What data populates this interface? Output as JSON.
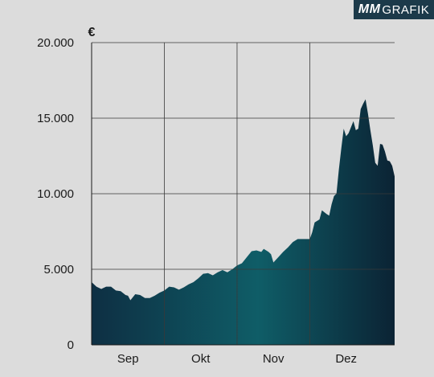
{
  "logo": {
    "brand": "MM",
    "suffix": "GRAFIK"
  },
  "chart_data": {
    "type": "area",
    "title": "",
    "xlabel": "",
    "ylabel": "€",
    "ylim": [
      0,
      20000
    ],
    "yticks": [
      0,
      5000,
      10000,
      15000,
      20000
    ],
    "ytick_labels": [
      "0",
      "5.000",
      "10.000",
      "15.000",
      "20.000"
    ],
    "xlim": [
      0,
      120
    ],
    "xticks": [
      15,
      45,
      75,
      105
    ],
    "xtick_labels": [
      "Sep",
      "Okt",
      "Nov",
      "Dez"
    ],
    "month_boundaries": [
      0,
      30,
      60,
      90,
      120
    ],
    "grid": true,
    "series": [
      {
        "values": [
          [
            0,
            4150
          ],
          [
            2,
            3850
          ],
          [
            4,
            3700
          ],
          [
            6,
            3850
          ],
          [
            8,
            3850
          ],
          [
            10,
            3600
          ],
          [
            12,
            3550
          ],
          [
            14,
            3300
          ],
          [
            15,
            3250
          ],
          [
            16,
            2950
          ],
          [
            18,
            3350
          ],
          [
            20,
            3300
          ],
          [
            22,
            3100
          ],
          [
            24,
            3100
          ],
          [
            26,
            3250
          ],
          [
            28,
            3450
          ],
          [
            30,
            3600
          ],
          [
            32,
            3850
          ],
          [
            34,
            3800
          ],
          [
            36,
            3650
          ],
          [
            38,
            3800
          ],
          [
            40,
            4000
          ],
          [
            42,
            4150
          ],
          [
            44,
            4400
          ],
          [
            46,
            4700
          ],
          [
            48,
            4750
          ],
          [
            50,
            4600
          ],
          [
            52,
            4800
          ],
          [
            54,
            4950
          ],
          [
            56,
            4800
          ],
          [
            58,
            5000
          ],
          [
            60,
            5250
          ],
          [
            62,
            5400
          ],
          [
            64,
            5800
          ],
          [
            66,
            6200
          ],
          [
            68,
            6250
          ],
          [
            70,
            6150
          ],
          [
            71,
            6350
          ],
          [
            73,
            6150
          ],
          [
            74,
            6000
          ],
          [
            75,
            5450
          ],
          [
            77,
            5800
          ],
          [
            79,
            6150
          ],
          [
            81,
            6450
          ],
          [
            83,
            6800
          ],
          [
            85,
            7000
          ],
          [
            87,
            7000
          ],
          [
            89,
            7000
          ],
          [
            90,
            7000
          ],
          [
            91,
            7450
          ],
          [
            92,
            8100
          ],
          [
            94,
            8300
          ],
          [
            95,
            8900
          ],
          [
            97,
            8650
          ],
          [
            98,
            8550
          ],
          [
            99,
            9300
          ],
          [
            100,
            9850
          ],
          [
            101,
            10000
          ],
          [
            102,
            11600
          ],
          [
            103,
            13000
          ],
          [
            104,
            14300
          ],
          [
            105,
            13800
          ],
          [
            106,
            14000
          ],
          [
            107,
            14400
          ],
          [
            108,
            14800
          ],
          [
            109,
            14200
          ],
          [
            110,
            14300
          ],
          [
            111,
            15600
          ],
          [
            112,
            15950
          ],
          [
            113,
            16250
          ],
          [
            114,
            15300
          ],
          [
            115,
            14200
          ],
          [
            116,
            13200
          ],
          [
            117,
            12050
          ],
          [
            118,
            11850
          ],
          [
            119,
            13300
          ],
          [
            120,
            13250
          ],
          [
            121,
            12800
          ],
          [
            122,
            12200
          ],
          [
            123,
            12150
          ],
          [
            124,
            11850
          ],
          [
            125,
            11150
          ]
        ]
      }
    ]
  }
}
